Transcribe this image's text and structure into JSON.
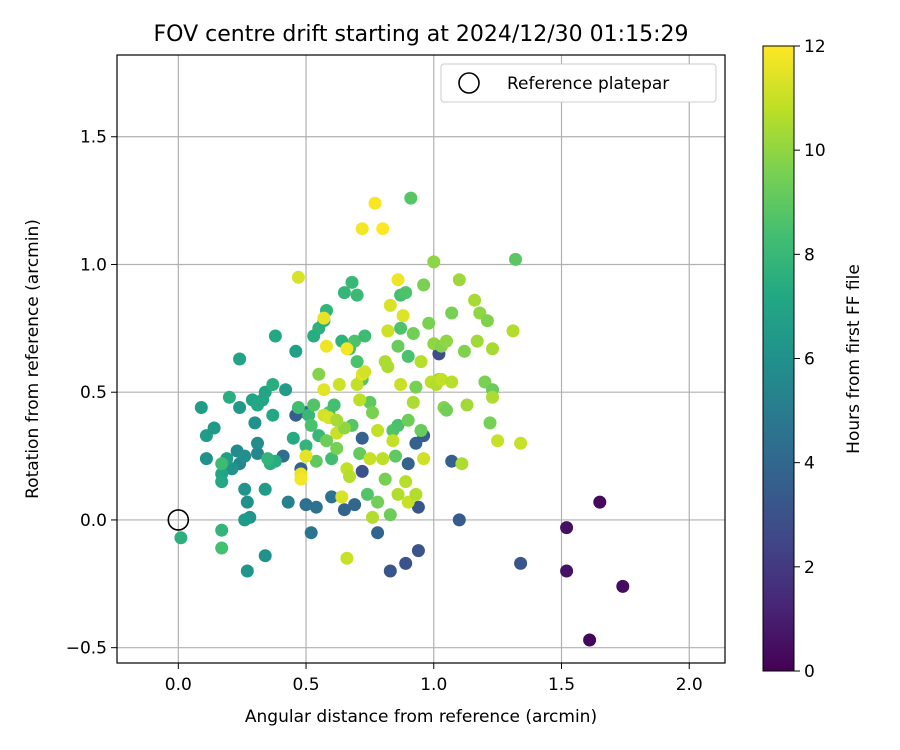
{
  "chart_data": {
    "type": "scatter",
    "title": "FOV centre drift starting at 2024/12/30 01:15:29",
    "xlabel": "Angular distance from reference (arcmin)",
    "ylabel": "Rotation from reference (arcmin)",
    "xlim": [
      -0.24,
      2.14
    ],
    "ylim": [
      -0.56,
      1.82
    ],
    "xticks": [
      0.0,
      0.5,
      1.0,
      1.5,
      2.0
    ],
    "xtick_labels": [
      "0.0",
      "0.5",
      "1.0",
      "1.5",
      "2.0"
    ],
    "yticks": [
      -0.5,
      0.0,
      0.5,
      1.0,
      1.5
    ],
    "ytick_labels": [
      "−0.5",
      "0.0",
      "0.5",
      "1.0",
      "1.5"
    ],
    "grid": true,
    "legend": {
      "position": "top-right",
      "entries": [
        "Reference platepar"
      ]
    },
    "colorbar": {
      "label": "Hours from first FF file",
      "colormap": "viridis",
      "range": [
        0,
        12
      ],
      "ticks": [
        0,
        2,
        4,
        6,
        8,
        10,
        12
      ],
      "tick_labels": [
        "0",
        "2",
        "4",
        "6",
        "8",
        "10",
        "12"
      ]
    },
    "reference_point": {
      "x": 0.0,
      "y": 0.0,
      "label": "Reference platepar"
    },
    "points": [
      {
        "x": 1.61,
        "y": -0.47,
        "t": 0.2
      },
      {
        "x": 1.65,
        "y": 0.07,
        "t": 0.3
      },
      {
        "x": 1.52,
        "y": -0.03,
        "t": 0.5
      },
      {
        "x": 1.52,
        "y": -0.2,
        "t": 0.6
      },
      {
        "x": 1.74,
        "y": -0.26,
        "t": 0.4
      },
      {
        "x": 1.34,
        "y": -0.17,
        "t": 3.2
      },
      {
        "x": 1.1,
        "y": 0.0,
        "t": 3.4
      },
      {
        "x": 1.07,
        "y": 0.23,
        "t": 3.6
      },
      {
        "x": 0.94,
        "y": -0.12,
        "t": 3.0
      },
      {
        "x": 0.89,
        "y": -0.17,
        "t": 3.1
      },
      {
        "x": 0.83,
        "y": -0.2,
        "t": 3.2
      },
      {
        "x": 0.78,
        "y": -0.05,
        "t": 3.9
      },
      {
        "x": 0.94,
        "y": 0.05,
        "t": 3.2
      },
      {
        "x": 0.93,
        "y": 0.3,
        "t": 3.8
      },
      {
        "x": 0.96,
        "y": 0.33,
        "t": 3.5
      },
      {
        "x": 0.9,
        "y": 0.22,
        "t": 3.8
      },
      {
        "x": 1.02,
        "y": 0.65,
        "t": 2.8
      },
      {
        "x": 0.72,
        "y": 0.32,
        "t": 3.7
      },
      {
        "x": 0.72,
        "y": 0.19,
        "t": 3.0
      },
      {
        "x": 0.69,
        "y": 0.06,
        "t": 4.0
      },
      {
        "x": 0.65,
        "y": 0.04,
        "t": 3.8
      },
      {
        "x": 0.6,
        "y": 0.09,
        "t": 4.5
      },
      {
        "x": 0.54,
        "y": 0.05,
        "t": 4.5
      },
      {
        "x": 0.5,
        "y": 0.06,
        "t": 4.4
      },
      {
        "x": 0.48,
        "y": 0.2,
        "t": 3.8
      },
      {
        "x": 0.46,
        "y": 0.41,
        "t": 3.6
      },
      {
        "x": 0.5,
        "y": 0.42,
        "t": 4.0
      },
      {
        "x": 0.41,
        "y": 0.25,
        "t": 4.3
      },
      {
        "x": 0.52,
        "y": -0.05,
        "t": 4.7
      },
      {
        "x": 0.43,
        "y": 0.07,
        "t": 5.2
      },
      {
        "x": 0.27,
        "y": -0.2,
        "t": 6.2
      },
      {
        "x": 0.34,
        "y": -0.14,
        "t": 6.0
      },
      {
        "x": 0.28,
        "y": 0.01,
        "t": 6.2
      },
      {
        "x": 0.26,
        "y": 0.0,
        "t": 6.5
      },
      {
        "x": 0.27,
        "y": 0.07,
        "t": 6.0
      },
      {
        "x": 0.26,
        "y": 0.12,
        "t": 6.2
      },
      {
        "x": 0.34,
        "y": 0.12,
        "t": 6.6
      },
      {
        "x": 0.31,
        "y": 0.26,
        "t": 5.5
      },
      {
        "x": 0.31,
        "y": 0.3,
        "t": 5.8
      },
      {
        "x": 0.3,
        "y": 0.38,
        "t": 6.0
      },
      {
        "x": 0.24,
        "y": 0.22,
        "t": 5.5
      },
      {
        "x": 0.23,
        "y": 0.27,
        "t": 5.7
      },
      {
        "x": 0.26,
        "y": 0.25,
        "t": 5.9
      },
      {
        "x": 0.21,
        "y": 0.2,
        "t": 6.1
      },
      {
        "x": 0.19,
        "y": 0.24,
        "t": 6.7
      },
      {
        "x": 0.17,
        "y": 0.18,
        "t": 7.0
      },
      {
        "x": 0.17,
        "y": 0.15,
        "t": 7.2
      },
      {
        "x": 0.11,
        "y": 0.33,
        "t": 6.6
      },
      {
        "x": 0.14,
        "y": 0.36,
        "t": 6.4
      },
      {
        "x": 0.11,
        "y": 0.24,
        "t": 6.0
      },
      {
        "x": 0.09,
        "y": 0.44,
        "t": 6.6
      },
      {
        "x": 0.24,
        "y": 0.44,
        "t": 6.4
      },
      {
        "x": 0.2,
        "y": 0.48,
        "t": 7.5
      },
      {
        "x": 0.24,
        "y": 0.63,
        "t": 7.0
      },
      {
        "x": 0.29,
        "y": 0.47,
        "t": 7.0
      },
      {
        "x": 0.31,
        "y": 0.45,
        "t": 7.2
      },
      {
        "x": 0.33,
        "y": 0.47,
        "t": 7.1
      },
      {
        "x": 0.34,
        "y": 0.5,
        "t": 7.0
      },
      {
        "x": 0.37,
        "y": 0.41,
        "t": 7.2
      },
      {
        "x": 0.37,
        "y": 0.53,
        "t": 7.5
      },
      {
        "x": 0.38,
        "y": 0.72,
        "t": 7.2
      },
      {
        "x": 0.42,
        "y": 0.51,
        "t": 6.6
      },
      {
        "x": 0.46,
        "y": 0.66,
        "t": 6.8
      },
      {
        "x": 0.45,
        "y": 0.32,
        "t": 7.3
      },
      {
        "x": 0.38,
        "y": 0.23,
        "t": 7.4
      },
      {
        "x": 0.36,
        "y": 0.22,
        "t": 7.5
      },
      {
        "x": 0.35,
        "y": 0.24,
        "t": 7.8
      },
      {
        "x": 0.01,
        "y": -0.07,
        "t": 7.6
      },
      {
        "x": 0.17,
        "y": -0.04,
        "t": 7.8
      },
      {
        "x": 0.17,
        "y": -0.11,
        "t": 8.4
      },
      {
        "x": 0.17,
        "y": 0.22,
        "t": 8.2
      },
      {
        "x": 0.47,
        "y": 0.44,
        "t": 8.3
      },
      {
        "x": 0.51,
        "y": 0.41,
        "t": 8.0
      },
      {
        "x": 0.5,
        "y": 0.29,
        "t": 7.8
      },
      {
        "x": 0.52,
        "y": 0.37,
        "t": 8.5
      },
      {
        "x": 0.53,
        "y": 0.45,
        "t": 8.7
      },
      {
        "x": 0.54,
        "y": 0.23,
        "t": 9.0
      },
      {
        "x": 0.55,
        "y": 0.33,
        "t": 8.0
      },
      {
        "x": 0.55,
        "y": 0.75,
        "t": 7.6
      },
      {
        "x": 0.53,
        "y": 0.72,
        "t": 7.4
      },
      {
        "x": 0.57,
        "y": 0.78,
        "t": 7.5
      },
      {
        "x": 0.58,
        "y": 0.82,
        "t": 7.8
      },
      {
        "x": 0.59,
        "y": 0.42,
        "t": 8.5
      },
      {
        "x": 0.6,
        "y": 0.24,
        "t": 8.3
      },
      {
        "x": 0.61,
        "y": 0.45,
        "t": 8.4
      },
      {
        "x": 0.64,
        "y": 0.7,
        "t": 7.7
      },
      {
        "x": 0.65,
        "y": 0.89,
        "t": 7.9
      },
      {
        "x": 0.68,
        "y": 0.93,
        "t": 8.0
      },
      {
        "x": 0.7,
        "y": 0.88,
        "t": 8.1
      },
      {
        "x": 0.67,
        "y": 0.67,
        "t": 8.3
      },
      {
        "x": 0.69,
        "y": 0.7,
        "t": 8.6
      },
      {
        "x": 0.7,
        "y": 0.62,
        "t": 8.5
      },
      {
        "x": 0.72,
        "y": 0.55,
        "t": 8.7
      },
      {
        "x": 0.73,
        "y": 0.72,
        "t": 8.2
      },
      {
        "x": 0.75,
        "y": 0.46,
        "t": 9.0
      },
      {
        "x": 0.68,
        "y": 0.37,
        "t": 8.8
      },
      {
        "x": 0.71,
        "y": 0.26,
        "t": 9.1
      },
      {
        "x": 0.74,
        "y": 0.1,
        "t": 8.7
      },
      {
        "x": 0.78,
        "y": 0.07,
        "t": 9.4
      },
      {
        "x": 0.81,
        "y": 0.16,
        "t": 9.5
      },
      {
        "x": 0.83,
        "y": 0.02,
        "t": 9.3
      },
      {
        "x": 0.84,
        "y": 0.35,
        "t": 8.7
      },
      {
        "x": 0.86,
        "y": 0.37,
        "t": 8.5
      },
      {
        "x": 0.85,
        "y": 0.25,
        "t": 9.0
      },
      {
        "x": 0.87,
        "y": 0.88,
        "t": 8.4
      },
      {
        "x": 0.89,
        "y": 0.89,
        "t": 8.6
      },
      {
        "x": 0.9,
        "y": 0.64,
        "t": 8.5
      },
      {
        "x": 0.87,
        "y": 0.75,
        "t": 8.6
      },
      {
        "x": 0.86,
        "y": 0.68,
        "t": 9.2
      },
      {
        "x": 0.91,
        "y": 1.26,
        "t": 8.8
      },
      {
        "x": 0.92,
        "y": 0.73,
        "t": 9.4
      },
      {
        "x": 0.93,
        "y": 0.52,
        "t": 9.5
      },
      {
        "x": 0.9,
        "y": 0.39,
        "t": 9.3
      },
      {
        "x": 0.95,
        "y": 0.35,
        "t": 9.2
      },
      {
        "x": 0.96,
        "y": 0.92,
        "t": 9.6
      },
      {
        "x": 0.98,
        "y": 0.77,
        "t": 9.6
      },
      {
        "x": 1.0,
        "y": 1.01,
        "t": 9.9
      },
      {
        "x": 1.0,
        "y": 0.69,
        "t": 10.0
      },
      {
        "x": 1.02,
        "y": 0.55,
        "t": 10.2
      },
      {
        "x": 1.03,
        "y": 0.68,
        "t": 9.8
      },
      {
        "x": 1.04,
        "y": 0.44,
        "t": 9.8
      },
      {
        "x": 1.05,
        "y": 0.43,
        "t": 9.4
      },
      {
        "x": 1.05,
        "y": 0.7,
        "t": 10.0
      },
      {
        "x": 1.07,
        "y": 0.81,
        "t": 9.5
      },
      {
        "x": 1.1,
        "y": 0.94,
        "t": 10.2
      },
      {
        "x": 1.12,
        "y": 0.66,
        "t": 9.7
      },
      {
        "x": 1.13,
        "y": 0.45,
        "t": 10.3
      },
      {
        "x": 1.11,
        "y": 0.22,
        "t": 10.5
      },
      {
        "x": 1.16,
        "y": 0.86,
        "t": 10.4
      },
      {
        "x": 1.18,
        "y": 0.81,
        "t": 10.0
      },
      {
        "x": 1.17,
        "y": 0.7,
        "t": 10.3
      },
      {
        "x": 1.2,
        "y": 0.54,
        "t": 9.6
      },
      {
        "x": 1.21,
        "y": 0.78,
        "t": 9.7
      },
      {
        "x": 1.22,
        "y": 0.38,
        "t": 9.5
      },
      {
        "x": 1.23,
        "y": 0.51,
        "t": 9.2
      },
      {
        "x": 1.23,
        "y": 0.48,
        "t": 10.5
      },
      {
        "x": 1.23,
        "y": 0.67,
        "t": 10.4
      },
      {
        "x": 1.25,
        "y": 0.31,
        "t": 11.0
      },
      {
        "x": 1.31,
        "y": 0.74,
        "t": 10.6
      },
      {
        "x": 1.32,
        "y": 1.02,
        "t": 8.9
      },
      {
        "x": 1.34,
        "y": 0.3,
        "t": 11.0
      },
      {
        "x": 0.47,
        "y": 0.95,
        "t": 11.3
      },
      {
        "x": 0.48,
        "y": 0.18,
        "t": 11.6
      },
      {
        "x": 0.48,
        "y": 0.16,
        "t": 11.8
      },
      {
        "x": 0.5,
        "y": 0.25,
        "t": 11.5
      },
      {
        "x": 0.57,
        "y": 0.79,
        "t": 11.6
      },
      {
        "x": 0.58,
        "y": 0.68,
        "t": 11.7
      },
      {
        "x": 0.57,
        "y": 0.51,
        "t": 11.5
      },
      {
        "x": 0.57,
        "y": 0.41,
        "t": 11.2
      },
      {
        "x": 0.59,
        "y": 0.4,
        "t": 11.3
      },
      {
        "x": 0.62,
        "y": 0.34,
        "t": 11.0
      },
      {
        "x": 0.63,
        "y": 0.53,
        "t": 11.1
      },
      {
        "x": 0.64,
        "y": 0.09,
        "t": 11.3
      },
      {
        "x": 0.66,
        "y": 0.67,
        "t": 11.8
      },
      {
        "x": 0.66,
        "y": -0.15,
        "t": 11.0
      },
      {
        "x": 0.66,
        "y": 0.2,
        "t": 10.9
      },
      {
        "x": 0.67,
        "y": 0.17,
        "t": 10.7
      },
      {
        "x": 0.7,
        "y": 0.53,
        "t": 10.9
      },
      {
        "x": 0.71,
        "y": 0.47,
        "t": 10.8
      },
      {
        "x": 0.72,
        "y": 1.14,
        "t": 11.8
      },
      {
        "x": 0.72,
        "y": 0.57,
        "t": 11.5
      },
      {
        "x": 0.73,
        "y": 0.58,
        "t": 11.2
      },
      {
        "x": 0.75,
        "y": 0.24,
        "t": 11.0
      },
      {
        "x": 0.76,
        "y": 0.01,
        "t": 10.6
      },
      {
        "x": 0.77,
        "y": 1.24,
        "t": 11.9
      },
      {
        "x": 0.8,
        "y": 1.14,
        "t": 12.0
      },
      {
        "x": 0.8,
        "y": 0.24,
        "t": 10.8
      },
      {
        "x": 0.81,
        "y": 0.62,
        "t": 10.5
      },
      {
        "x": 0.82,
        "y": 0.74,
        "t": 11.1
      },
      {
        "x": 0.82,
        "y": 0.6,
        "t": 10.5
      },
      {
        "x": 0.83,
        "y": 0.84,
        "t": 11.3
      },
      {
        "x": 0.84,
        "y": 0.31,
        "t": 10.9
      },
      {
        "x": 0.86,
        "y": 0.94,
        "t": 11.7
      },
      {
        "x": 0.86,
        "y": 0.1,
        "t": 10.6
      },
      {
        "x": 0.87,
        "y": 0.53,
        "t": 11.0
      },
      {
        "x": 0.88,
        "y": 0.8,
        "t": 11.4
      },
      {
        "x": 0.89,
        "y": 0.15,
        "t": 10.7
      },
      {
        "x": 0.9,
        "y": 0.07,
        "t": 11.0
      },
      {
        "x": 0.92,
        "y": 0.46,
        "t": 10.5
      },
      {
        "x": 0.93,
        "y": 0.1,
        "t": 10.6
      },
      {
        "x": 0.95,
        "y": 0.62,
        "t": 10.7
      },
      {
        "x": 0.96,
        "y": 0.24,
        "t": 11.1
      },
      {
        "x": 0.99,
        "y": 0.54,
        "t": 10.8
      },
      {
        "x": 1.01,
        "y": 0.53,
        "t": 10.6
      },
      {
        "x": 1.03,
        "y": 0.55,
        "t": 10.9
      },
      {
        "x": 1.07,
        "y": 0.54,
        "t": 10.7
      },
      {
        "x": 0.65,
        "y": 0.36,
        "t": 10.0
      },
      {
        "x": 0.78,
        "y": 0.35,
        "t": 10.9
      },
      {
        "x": 0.62,
        "y": 0.39,
        "t": 10.4
      },
      {
        "x": 0.55,
        "y": 0.57,
        "t": 9.8
      },
      {
        "x": 0.76,
        "y": 0.42,
        "t": 9.6
      },
      {
        "x": 0.62,
        "y": 0.28,
        "t": 9.5
      },
      {
        "x": 0.58,
        "y": 0.31,
        "t": 9.3
      }
    ]
  }
}
